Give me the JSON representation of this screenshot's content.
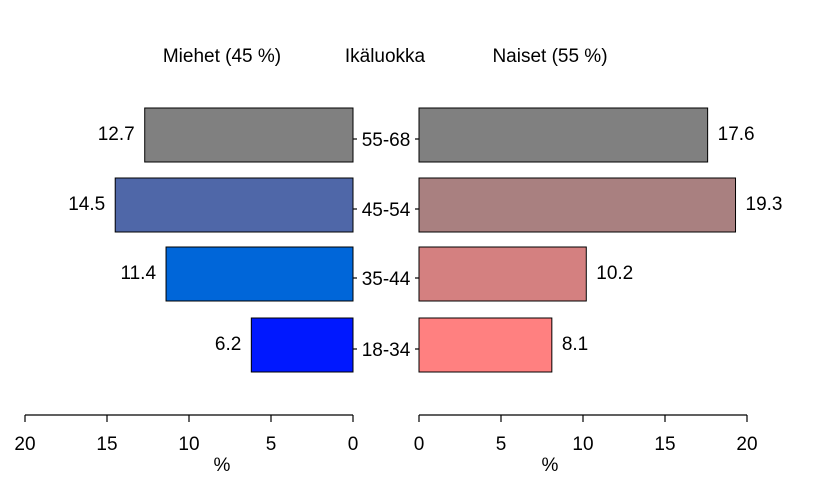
{
  "chart_data": {
    "type": "bar",
    "orientation": "horizontal",
    "layout": "population-pyramid",
    "headers": {
      "left": "Miehet (45 %)",
      "center": "Ikäluokka",
      "right": "Naiset (55 %)"
    },
    "categories": [
      "55-68",
      "45-54",
      "35-44",
      "18-34"
    ],
    "series": [
      {
        "name": "Miehet (45 %)",
        "side": "left",
        "values": [
          12.7,
          14.5,
          11.4,
          6.2
        ],
        "value_labels": [
          "12.7",
          "14.5",
          "11.4",
          "6.2"
        ],
        "colors": [
          "#808080",
          "#4f67a8",
          "#0066d9",
          "#0018ff"
        ]
      },
      {
        "name": "Naiset (55 %)",
        "side": "right",
        "values": [
          17.6,
          19.3,
          10.2,
          8.1
        ],
        "value_labels": [
          "17.6",
          "19.3",
          "10.2",
          "8.1"
        ],
        "colors": [
          "#808080",
          "#a98080",
          "#d48080",
          "#ff8080"
        ]
      }
    ],
    "left_axis": {
      "ticks": [
        "20",
        "15",
        "10",
        "5",
        "0"
      ],
      "xlabel": "%",
      "xlim": [
        0,
        20
      ],
      "reversed": true
    },
    "right_axis": {
      "ticks": [
        "0",
        "5",
        "10",
        "15",
        "20"
      ],
      "xlabel": "%",
      "xlim": [
        0,
        20
      ]
    },
    "grid": false,
    "legend": "none"
  }
}
